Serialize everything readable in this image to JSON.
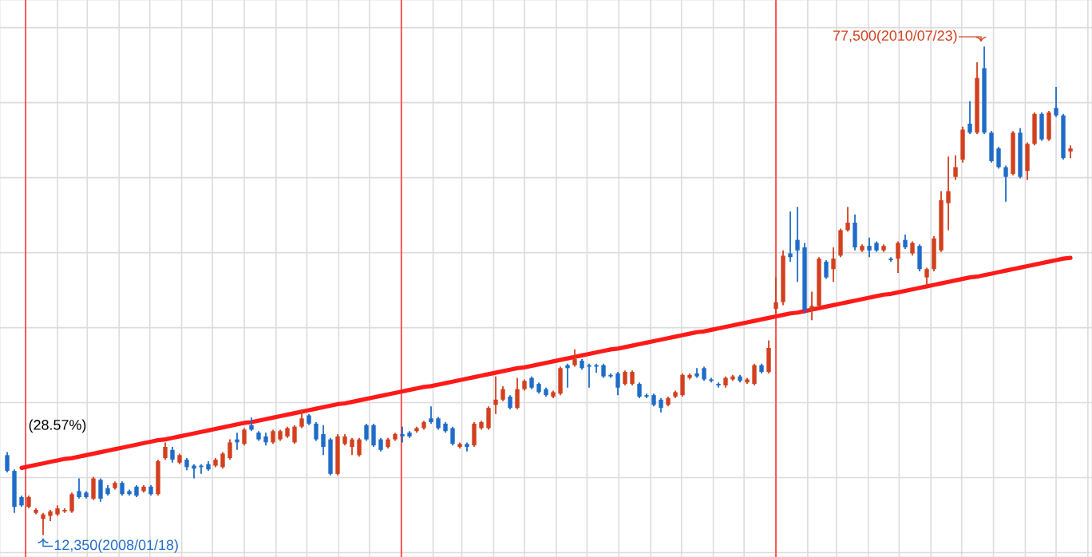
{
  "chart_data": {
    "type": "candlestick",
    "categories": [
      null,
      null,
      null,
      null,
      null,
      null,
      null,
      null,
      null,
      null,
      null,
      null,
      null,
      null,
      null,
      null,
      null,
      null,
      null,
      null,
      null,
      null,
      null,
      null,
      null,
      null,
      null,
      null,
      null,
      null,
      null,
      null,
      null,
      null,
      null,
      null,
      null,
      null,
      null,
      null,
      null,
      null,
      null,
      null,
      null,
      null,
      null,
      null,
      null,
      null,
      null,
      null,
      null,
      null,
      null,
      null,
      null,
      null,
      null,
      null,
      null,
      null,
      null,
      null,
      null,
      null,
      null,
      null,
      null,
      null,
      null,
      null,
      null,
      null,
      null,
      null,
      null,
      null,
      null,
      null,
      null,
      null,
      null,
      null,
      null,
      null,
      null,
      null,
      null,
      null,
      null,
      null,
      null,
      null,
      null,
      null,
      null,
      null,
      null,
      null,
      null,
      null,
      null,
      null,
      null,
      null,
      null,
      null,
      null,
      null,
      null,
      null,
      null,
      null,
      null,
      null,
      null,
      null,
      null,
      null,
      null,
      null,
      null,
      null,
      null,
      null,
      null,
      null,
      null,
      null,
      null,
      null,
      null,
      null,
      null,
      null,
      null,
      null,
      null,
      null,
      null,
      null,
      null,
      null,
      null,
      null,
      null,
      null,
      null
    ],
    "ohlc": [
      [
        23000,
        23400,
        20700,
        20900
      ],
      [
        20900,
        21100,
        15300,
        16100
      ],
      [
        17400,
        17600,
        16100,
        16300
      ],
      [
        16100,
        17600,
        15900,
        17400
      ],
      [
        15300,
        15900,
        15100,
        15700
      ],
      [
        14500,
        15300,
        12350,
        15100
      ],
      [
        14900,
        15700,
        14200,
        15500
      ],
      [
        15100,
        16300,
        14900,
        15900
      ],
      [
        15500,
        15900,
        15300,
        15700
      ],
      [
        15500,
        18000,
        15300,
        17800
      ],
      [
        18200,
        19900,
        17200,
        17400
      ],
      [
        18000,
        18200,
        17200,
        17400
      ],
      [
        17200,
        20100,
        17000,
        19900
      ],
      [
        19700,
        19900,
        16800,
        17200
      ],
      [
        18600,
        19000,
        17600,
        17800
      ],
      [
        18600,
        19500,
        18400,
        19300
      ],
      [
        19300,
        19500,
        17600,
        17800
      ],
      [
        18200,
        18400,
        17600,
        17800
      ],
      [
        18800,
        19000,
        17400,
        17600
      ],
      [
        18200,
        19000,
        18000,
        18800
      ],
      [
        18800,
        19000,
        17600,
        17800
      ],
      [
        17800,
        22400,
        17600,
        22200
      ],
      [
        22600,
        24700,
        22400,
        24100
      ],
      [
        23700,
        24100,
        22000,
        22400
      ],
      [
        22000,
        23200,
        21800,
        23000
      ],
      [
        22400,
        22600,
        21000,
        21400
      ],
      [
        21600,
        21800,
        19900,
        21200
      ],
      [
        21600,
        21800,
        20500,
        21400
      ],
      [
        21800,
        22200,
        20900,
        21100
      ],
      [
        21600,
        22600,
        21400,
        22400
      ],
      [
        21400,
        23400,
        21200,
        23200
      ],
      [
        22600,
        25100,
        22400,
        24700
      ],
      [
        25100,
        26000,
        23700,
        24700
      ],
      [
        24500,
        26600,
        24300,
        26400
      ],
      [
        27000,
        28000,
        26200,
        26400
      ],
      [
        26000,
        26200,
        24900,
        25100
      ],
      [
        25500,
        26000,
        24300,
        24700
      ],
      [
        24700,
        26400,
        24500,
        26200
      ],
      [
        25100,
        26400,
        24900,
        26200
      ],
      [
        25500,
        26800,
        25300,
        26600
      ],
      [
        24700,
        27000,
        24500,
        26800
      ],
      [
        26800,
        29100,
        26600,
        27900
      ],
      [
        28300,
        28500,
        27000,
        27200
      ],
      [
        27200,
        27400,
        24900,
        25100
      ],
      [
        25800,
        27000,
        23000,
        24100
      ],
      [
        25100,
        25300,
        20300,
        20500
      ],
      [
        20500,
        25800,
        20300,
        25500
      ],
      [
        24500,
        25800,
        24300,
        25500
      ],
      [
        24100,
        25300,
        23000,
        25100
      ],
      [
        23000,
        25300,
        22800,
        25100
      ],
      [
        27000,
        27200,
        24900,
        25100
      ],
      [
        27000,
        27200,
        24100,
        24300
      ],
      [
        25100,
        25300,
        23500,
        23700
      ],
      [
        24100,
        25300,
        23900,
        25100
      ],
      [
        25100,
        26000,
        24900,
        25800
      ],
      [
        25800,
        26800,
        24700,
        25500
      ],
      [
        26000,
        26200,
        25300,
        25500
      ],
      [
        26200,
        26800,
        26000,
        26600
      ],
      [
        26600,
        27600,
        26400,
        27400
      ],
      [
        27900,
        29500,
        27200,
        27400
      ],
      [
        27900,
        28100,
        26400,
        26600
      ],
      [
        27200,
        27400,
        26000,
        26200
      ],
      [
        26600,
        26800,
        24300,
        24500
      ],
      [
        24100,
        24700,
        23900,
        24500
      ],
      [
        24500,
        24700,
        23500,
        24100
      ],
      [
        24300,
        27400,
        24100,
        27200
      ],
      [
        26600,
        27600,
        26400,
        27400
      ],
      [
        26600,
        29500,
        26400,
        29300
      ],
      [
        29700,
        33500,
        28500,
        30400
      ],
      [
        30400,
        32200,
        30200,
        31800
      ],
      [
        30800,
        31000,
        29100,
        29300
      ],
      [
        29300,
        33300,
        29100,
        31800
      ],
      [
        31800,
        33100,
        31600,
        32900
      ],
      [
        33300,
        33500,
        31800,
        32000
      ],
      [
        32500,
        32700,
        31200,
        31400
      ],
      [
        31800,
        32000,
        30800,
        31000
      ],
      [
        30800,
        31600,
        30600,
        31400
      ],
      [
        31200,
        34800,
        31000,
        34600
      ],
      [
        35000,
        35200,
        32000,
        34600
      ],
      [
        35000,
        37100,
        34800,
        35800
      ],
      [
        35600,
        35800,
        34400,
        34600
      ],
      [
        35000,
        35200,
        32000,
        34800
      ],
      [
        35000,
        35200,
        34000,
        34800
      ],
      [
        35000,
        35200,
        33300,
        33500
      ],
      [
        33700,
        33900,
        33300,
        33500
      ],
      [
        33900,
        34100,
        31000,
        32000
      ],
      [
        32500,
        34300,
        32300,
        34100
      ],
      [
        32500,
        34300,
        32300,
        34100
      ],
      [
        32500,
        32700,
        30600,
        30800
      ],
      [
        31000,
        31200,
        30600,
        30800
      ],
      [
        31000,
        31200,
        29500,
        29700
      ],
      [
        30400,
        30600,
        28700,
        29300
      ],
      [
        29700,
        30800,
        29500,
        30600
      ],
      [
        30800,
        31600,
        30600,
        31400
      ],
      [
        31000,
        33900,
        30800,
        33700
      ],
      [
        33300,
        33900,
        33100,
        33700
      ],
      [
        33900,
        34600,
        33300,
        33500
      ],
      [
        34600,
        34800,
        32900,
        33100
      ],
      [
        33100,
        33300,
        32700,
        32900
      ],
      [
        32500,
        32700,
        32000,
        32300
      ],
      [
        32300,
        33500,
        32000,
        33300
      ],
      [
        33100,
        33700,
        32900,
        33500
      ],
      [
        33500,
        33700,
        32700,
        32900
      ],
      [
        32700,
        33300,
        32500,
        33100
      ],
      [
        32500,
        35200,
        32300,
        35000
      ],
      [
        35000,
        35200,
        33900,
        34100
      ],
      [
        34100,
        38300,
        33900,
        37300
      ],
      [
        42500,
        46700,
        41900,
        43400
      ],
      [
        43400,
        50300,
        43000,
        49600
      ],
      [
        49900,
        55500,
        48800,
        49400
      ],
      [
        51700,
        56100,
        46100,
        50300
      ],
      [
        50700,
        51300,
        41900,
        42300
      ],
      [
        42300,
        44800,
        41000,
        42900
      ],
      [
        42900,
        49400,
        42700,
        49200
      ],
      [
        48800,
        49000,
        46500,
        46700
      ],
      [
        47800,
        50700,
        46100,
        49200
      ],
      [
        49600,
        53200,
        49400,
        53000
      ],
      [
        53000,
        56100,
        52800,
        54000
      ],
      [
        54000,
        55100,
        50300,
        50700
      ],
      [
        50300,
        51100,
        50100,
        50900
      ],
      [
        50900,
        52000,
        49400,
        50300
      ],
      [
        51300,
        51500,
        50100,
        50300
      ],
      [
        50300,
        51100,
        50100,
        50900
      ],
      [
        49200,
        49400,
        48800,
        49000
      ],
      [
        49200,
        51500,
        47300,
        51300
      ],
      [
        51700,
        52400,
        50500,
        50700
      ],
      [
        49900,
        51500,
        49600,
        51300
      ],
      [
        50900,
        51100,
        47500,
        47800
      ],
      [
        46700,
        48000,
        45500,
        47800
      ],
      [
        47800,
        52200,
        47500,
        51900
      ],
      [
        50300,
        58200,
        50100,
        57000
      ],
      [
        56600,
        62800,
        53000,
        58200
      ],
      [
        60100,
        63000,
        59700,
        61400
      ],
      [
        62400,
        66800,
        62000,
        66400
      ],
      [
        67200,
        70200,
        65800,
        66000
      ],
      [
        66000,
        75400,
        65800,
        73300
      ],
      [
        74600,
        77500,
        65800,
        66000
      ],
      [
        66000,
        66200,
        62000,
        62200
      ],
      [
        63900,
        64100,
        61200,
        61400
      ],
      [
        61400,
        61600,
        56800,
        60100
      ],
      [
        60500,
        66200,
        60300,
        66000
      ],
      [
        66000,
        66600,
        59900,
        60100
      ],
      [
        60900,
        64700,
        59700,
        64500
      ],
      [
        64500,
        68700,
        64300,
        68500
      ],
      [
        68500,
        68700,
        64900,
        65100
      ],
      [
        65100,
        68900,
        64900,
        68700
      ],
      [
        69300,
        72100,
        68100,
        68300
      ],
      [
        68300,
        68500,
        62400,
        62600
      ],
      [
        63500,
        64300,
        62600,
        63900
      ]
    ],
    "series": [
      {
        "type": "line",
        "color": "#ff1a1a",
        "values": [
          null,
          null,
          21300,
          21500,
          21700,
          21900,
          22100,
          22300,
          22500,
          22600,
          22800,
          23000,
          23200,
          23400,
          23600,
          23800,
          24000,
          24200,
          24400,
          24600,
          24800,
          25000,
          25100,
          25300,
          25500,
          25700,
          25900,
          26100,
          26300,
          26500,
          26700,
          26900,
          27100,
          27300,
          27400,
          27600,
          27800,
          28000,
          28200,
          28400,
          28600,
          28800,
          29000,
          29200,
          29400,
          29600,
          29800,
          29900,
          30100,
          30300,
          30500,
          30700,
          30900,
          31100,
          31300,
          31500,
          31700,
          31900,
          32100,
          32200,
          32400,
          32600,
          32800,
          33000,
          33200,
          33400,
          33600,
          33800,
          34000,
          34200,
          34400,
          34600,
          34700,
          34900,
          35100,
          35300,
          35500,
          35700,
          35900,
          36100,
          36300,
          36500,
          36700,
          36900,
          37100,
          37200,
          37400,
          37600,
          37800,
          38000,
          38200,
          38400,
          38600,
          38800,
          39000,
          39200,
          39400,
          39500,
          39700,
          39900,
          40100,
          40300,
          40500,
          40700,
          40900,
          41100,
          41300,
          41500,
          41700,
          41900,
          42000,
          42200,
          42400,
          42600,
          42800,
          43000,
          43200,
          43400,
          43600,
          43800,
          44000,
          44200,
          44400,
          44500,
          44700,
          44900,
          45100,
          45300,
          45500,
          45700,
          45900,
          46100,
          46300,
          46500,
          46700,
          46800,
          47000,
          47200,
          47400,
          47600,
          47800,
          48000,
          48200,
          48400,
          48600,
          48800,
          49000,
          49200,
          49300
        ]
      }
    ],
    "annotations": [
      "77,500(2010/07/23)",
      "12,350(2008/01/18)",
      "(28.57%)"
    ],
    "grid": true,
    "tick_labels": false
  }
}
